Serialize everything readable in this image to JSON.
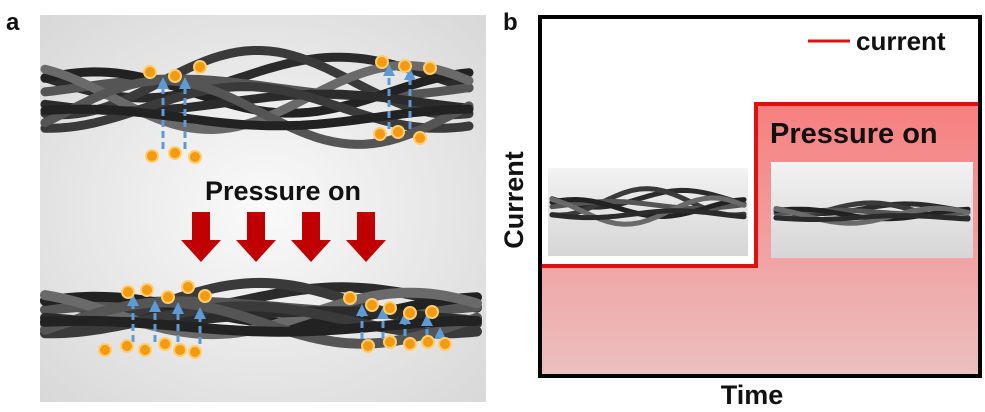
{
  "panels": {
    "a": {
      "label": "a",
      "caption": "Pressure on"
    },
    "b": {
      "label": "b",
      "legend": "current",
      "annotation": "Pressure on",
      "y_label": "Current",
      "x_label": "Time"
    }
  }
}
